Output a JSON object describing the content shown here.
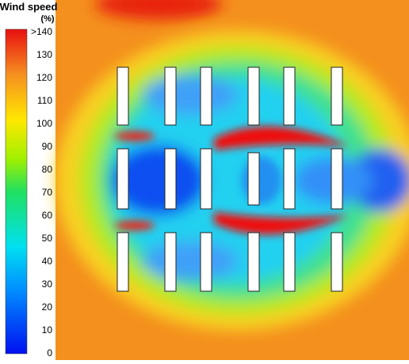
{
  "legend": {
    "title": "Wind speed",
    "unit": "(%)",
    "ticks": [
      ">140",
      "130",
      "120",
      "110",
      "100",
      "90",
      "80",
      "70",
      "60",
      "50",
      "40",
      "30",
      "20",
      "10",
      "0"
    ]
  }
}
